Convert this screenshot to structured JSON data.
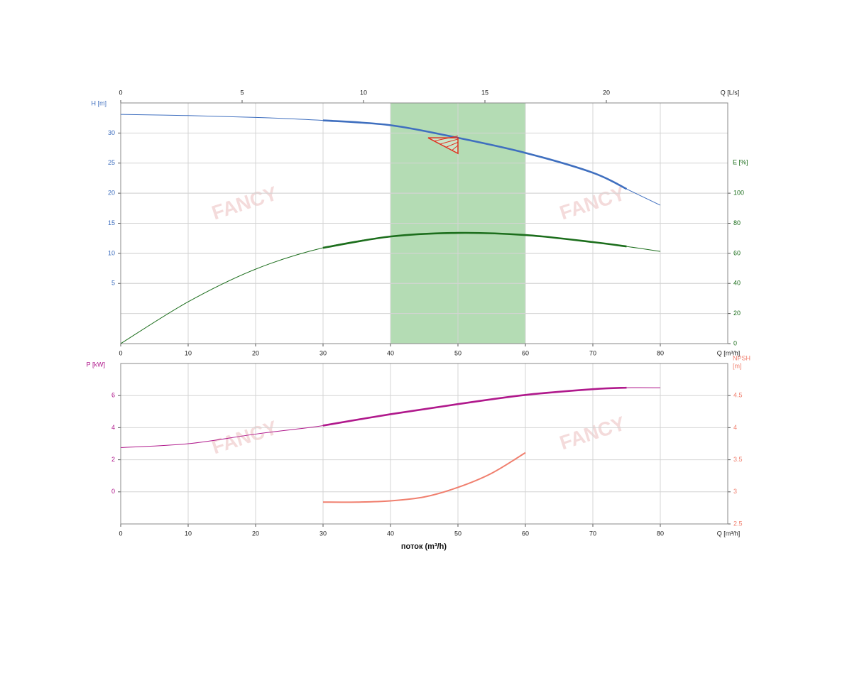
{
  "watermark": "FANCY",
  "chart_data": [
    {
      "type": "line",
      "y_label": "H [m]",
      "y2_label": "E [%]",
      "x_label": "Q [m³/h]",
      "x2_label": "Q [L/s]",
      "xlim": [
        0,
        90
      ],
      "xticks": [
        0,
        10,
        20,
        30,
        40,
        50,
        60,
        70,
        80
      ],
      "x2lim": [
        0,
        25
      ],
      "x2ticks": [
        0,
        5,
        10,
        15,
        20
      ],
      "ylim": [
        -5,
        35
      ],
      "yticks": [
        5,
        10,
        15,
        20,
        25,
        30
      ],
      "y2lim": [
        0,
        160
      ],
      "y2ticks": [
        0,
        20,
        40,
        60,
        80,
        100
      ],
      "grid": true,
      "band": {
        "xlim": [
          40,
          60
        ],
        "color": "#8cc98c"
      },
      "duty_point": {
        "x": 50,
        "y": 29.2,
        "color": "#e03020"
      },
      "bold_xlim": [
        30,
        75
      ],
      "series": [
        {
          "color": "#3f6fbf",
          "axis": "y",
          "x": [
            0,
            10,
            20,
            30,
            40,
            50,
            60,
            70,
            75,
            80
          ],
          "values": [
            33.1,
            32.9,
            32.6,
            32.1,
            31.3,
            29.2,
            26.7,
            23.4,
            20.7,
            18.0
          ]
        },
        {
          "color": "#1c6e1c",
          "axis": "y2",
          "x": [
            0,
            10,
            20,
            30,
            40,
            50,
            60,
            70,
            75,
            80
          ],
          "values": [
            0,
            27.8,
            49.5,
            63.7,
            71.2,
            73.6,
            72.2,
            67.5,
            64.6,
            61.3
          ]
        }
      ]
    },
    {
      "type": "line",
      "y_label": "P [kW]",
      "y2_label": [
        "NPSH",
        "[m]"
      ],
      "x_label": "Q [m³/h]",
      "x_title": "поток (m³/h)",
      "xlim": [
        0,
        90
      ],
      "xticks": [
        0,
        10,
        20,
        30,
        40,
        50,
        60,
        70,
        80
      ],
      "ylim": [
        -2,
        8
      ],
      "yticks": [
        0,
        2,
        4,
        6
      ],
      "y2lim": [
        2.5,
        5
      ],
      "y2ticks": [
        2.5,
        3,
        3.5,
        4,
        4.5
      ],
      "grid": true,
      "bold_xlim": [
        30,
        75
      ],
      "series": [
        {
          "color": "#b0198c",
          "axis": "y",
          "x": [
            0,
            10,
            20,
            30,
            40,
            50,
            60,
            70,
            75,
            80
          ],
          "values": [
            2.76,
            3.0,
            3.6,
            4.13,
            4.84,
            5.47,
            6.04,
            6.4,
            6.49,
            6.49
          ]
        },
        {
          "color": "#f07f6e",
          "axis": "y2",
          "x": [
            30,
            35,
            40,
            45,
            50,
            55,
            60
          ],
          "values": [
            2.84,
            2.84,
            2.86,
            2.92,
            3.07,
            3.29,
            3.61
          ]
        }
      ]
    }
  ]
}
